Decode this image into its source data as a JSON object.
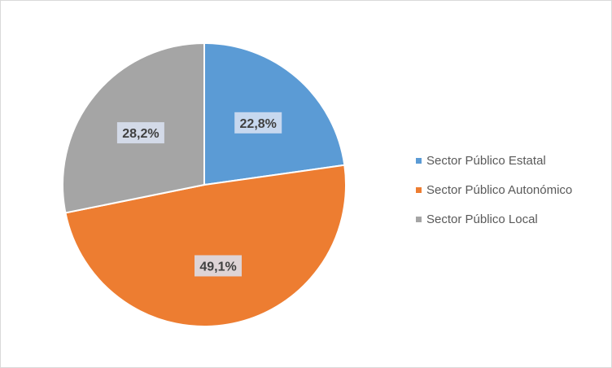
{
  "chart_data": {
    "type": "pie",
    "categories": [
      "Sector Público Estatal",
      "Sector Público Autonómico",
      "Sector Público Local"
    ],
    "values": [
      22.8,
      49.1,
      28.2
    ],
    "labels": [
      "22,8%",
      "49,1%",
      "28,2%"
    ],
    "colors": [
      "#5b9bd5",
      "#ed7d31",
      "#a5a5a5"
    ],
    "title": "",
    "legend_position": "right",
    "start_angle_deg": 0,
    "direction": "clockwise"
  }
}
